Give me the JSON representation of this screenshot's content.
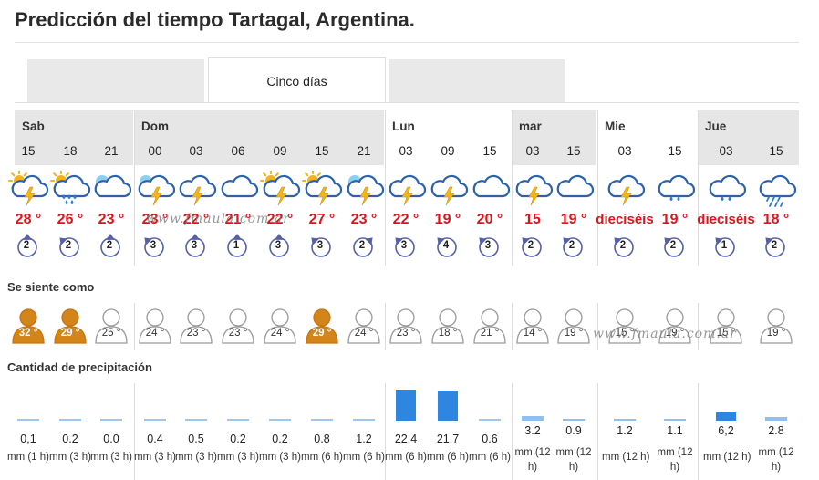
{
  "page": {
    "title": "Predicción del tiempo Tartagal, Argentina."
  },
  "tabs": [
    "",
    "Cinco días",
    ""
  ],
  "days": [
    "Sab",
    "Dom",
    "Lun",
    "mar",
    "Mie",
    "Jue"
  ],
  "columns": [
    {
      "hour": "15",
      "icon": "sun-cloud-thunder-icon",
      "temp": "28 °",
      "wind": "2",
      "wind_dir": "n",
      "feels": "32 °",
      "feels_hot": true,
      "precip": "0,1",
      "unit": "mm (1 h)"
    },
    {
      "hour": "18",
      "icon": "sun-cloud-rain-icon",
      "temp": "26 °",
      "wind": "2",
      "wind_dir": "nw",
      "feels": "29 °",
      "feels_hot": true,
      "precip": "0.2",
      "unit": "mm (3 h)"
    },
    {
      "hour": "21",
      "icon": "moon-cloud-icon",
      "temp": "23 °",
      "wind": "2",
      "wind_dir": "e",
      "feels": "25 °",
      "feels_hot": false,
      "precip": "0.0",
      "unit": "mm (3 h)"
    },
    {
      "hour": "00",
      "icon": "moon-cloud-thunder-icon",
      "temp": "23 °",
      "wind": "3",
      "wind_dir": "nw",
      "feels": "24 °",
      "feels_hot": false,
      "precip": "0.4",
      "unit": "mm (3 h)"
    },
    {
      "hour": "03",
      "icon": "cloud-thunder-icon",
      "temp": "22 °",
      "wind": "3",
      "wind_dir": "n",
      "feels": "23 °",
      "feels_hot": false,
      "precip": "0.5",
      "unit": "mm (3 h)"
    },
    {
      "hour": "06",
      "icon": "cloudy-icon",
      "temp": "21 °",
      "wind": "1",
      "wind_dir": "n",
      "feels": "23 °",
      "feels_hot": false,
      "precip": "0.2",
      "unit": "mm (3 h)"
    },
    {
      "hour": "09",
      "icon": "sun-cloud-thunder-icon",
      "temp": "22 °",
      "wind": "3",
      "wind_dir": "e",
      "feels": "24 °",
      "feels_hot": false,
      "precip": "0.2",
      "unit": "mm (3 h)"
    },
    {
      "hour": "15",
      "icon": "sun-cloud-thunder-icon",
      "temp": "27 °",
      "wind": "3",
      "wind_dir": "nw",
      "feels": "29 °",
      "feels_hot": true,
      "precip": "0.8",
      "unit": "mm (6 h)"
    },
    {
      "hour": "21",
      "icon": "moon-cloud-thunder-icon",
      "temp": "23 °",
      "wind": "2",
      "wind_dir": "ne",
      "feels": "24 °",
      "feels_hot": false,
      "precip": "1.2",
      "unit": "mm (6 h)"
    },
    {
      "hour": "03",
      "icon": "cloud-thunder-icon",
      "temp": "22 °",
      "wind": "3",
      "wind_dir": "nw",
      "feels": "23 °",
      "feels_hot": false,
      "precip": "22.4",
      "unit": "mm (6 h)"
    },
    {
      "hour": "09",
      "icon": "cloud-thunder-icon",
      "temp": "19 °",
      "wind": "4",
      "wind_dir": "nw",
      "feels": "18 °",
      "feels_hot": false,
      "precip": "21.7",
      "unit": "mm (6 h)"
    },
    {
      "hour": "15",
      "icon": "cloudy-icon",
      "temp": "20 °",
      "wind": "3",
      "wind_dir": "nw",
      "feels": "21 °",
      "feels_hot": false,
      "precip": "0.6",
      "unit": "mm (6 h)"
    },
    {
      "hour": "03",
      "icon": "cloud-thunder-icon",
      "temp": "15",
      "wind": "2",
      "wind_dir": "nw",
      "feels": "14 °",
      "feels_hot": false,
      "precip": "3.2",
      "unit": "mm (12 h)"
    },
    {
      "hour": "15",
      "icon": "cloudy-icon",
      "temp": "19 °",
      "wind": "2",
      "wind_dir": "nw",
      "feels": "19 °",
      "feels_hot": false,
      "precip": "0.9",
      "unit": "mm (12 h)"
    },
    {
      "hour": "03",
      "icon": "cloud-thunder-icon",
      "temp": "dieciséis",
      "wind": "2",
      "wind_dir": "nw",
      "feels": "15 °",
      "feels_hot": false,
      "precip": "1.2",
      "unit": "mm (12 h)"
    },
    {
      "hour": "15",
      "icon": "cloud-rain-icon",
      "temp": "19 °",
      "wind": "2",
      "wind_dir": "nw",
      "feels": "19 °",
      "feels_hot": false,
      "precip": "1.1",
      "unit": "mm (12 h)"
    },
    {
      "hour": "03",
      "icon": "cloud-rain-icon",
      "temp": "dieciséis",
      "wind": "1",
      "wind_dir": "nw",
      "feels": "15 °",
      "feels_hot": false,
      "precip": "6,2",
      "unit": "mm (12 h)"
    },
    {
      "hour": "15",
      "icon": "cloud-heavy-rain-icon",
      "temp": "18 °",
      "wind": "2",
      "wind_dir": "nw",
      "feels": "19 °",
      "feels_hot": false,
      "precip": "2.8",
      "unit": "mm (12 h)"
    }
  ],
  "sections": {
    "feels_like": "Se siente como",
    "precipitation": "Cantidad de precipitación"
  },
  "watermarks": [
    "www.fmaula.com.ar",
    "www.fmaula.com.ar"
  ],
  "colors": {
    "temp": "#e0121b",
    "wind": "#5560a8",
    "hot": "#d4851a",
    "bar": "#2f86e0",
    "bar_light": "#8fc0ee"
  }
}
